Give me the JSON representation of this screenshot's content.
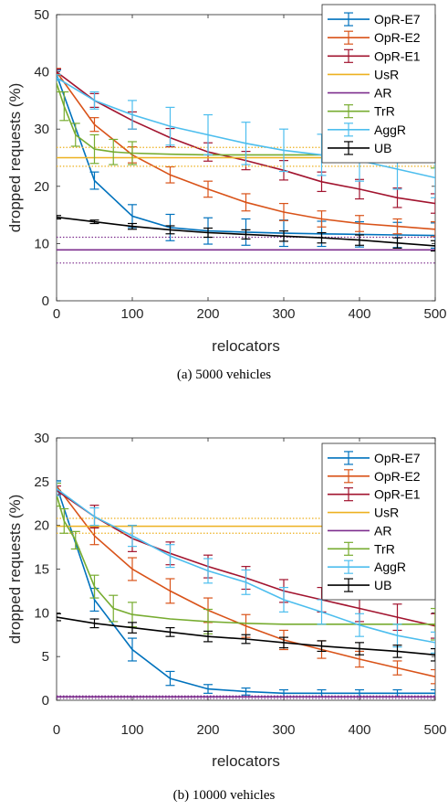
{
  "captions": [
    "(a) 5000 vehicles",
    "(b) 10000 vehicles"
  ],
  "legend_colors": {
    "OpR-E7": "#0072BD",
    "OpR-E2": "#D95319",
    "OpR-E1": "#A2142F",
    "UsR": "#EDB120",
    "AR": "#7E2F8E",
    "TrR": "#77AC30",
    "AggR": "#4DBEEE",
    "UB": "#000000"
  },
  "chart_data": [
    {
      "type": "line",
      "xlabel": "relocators",
      "ylabel": "dropped requests (%)",
      "xlim": [
        0,
        500
      ],
      "ylim": [
        0,
        50
      ],
      "xticks": [
        0,
        100,
        200,
        300,
        400,
        500
      ],
      "yticks": [
        0,
        10,
        20,
        30,
        40,
        50
      ],
      "grid": false,
      "legend_position": "top-right",
      "series": [
        {
          "name": "OpR-E7",
          "x": [
            0,
            50,
            100,
            150,
            200,
            250,
            300,
            350,
            400,
            450,
            500
          ],
          "y": [
            39.5,
            21.0,
            14.8,
            12.8,
            12.2,
            12.0,
            11.8,
            11.7,
            11.6,
            11.5,
            11.4
          ],
          "err": [
            0.8,
            1.5,
            2.0,
            2.3,
            2.3,
            2.3,
            2.3,
            2.2,
            2.2,
            2.2,
            2.2
          ]
        },
        {
          "name": "OpR-E2",
          "x": [
            0,
            50,
            100,
            150,
            200,
            250,
            300,
            350,
            400,
            450,
            500
          ],
          "y": [
            40.0,
            30.8,
            25.5,
            22.0,
            19.5,
            17.2,
            15.5,
            14.3,
            13.5,
            13.0,
            12.5
          ],
          "err": [
            0.6,
            1.2,
            1.4,
            1.4,
            1.4,
            1.5,
            1.5,
            1.4,
            1.4,
            1.3,
            1.3
          ]
        },
        {
          "name": "OpR-E1",
          "x": [
            0,
            50,
            100,
            150,
            200,
            250,
            300,
            350,
            400,
            450,
            500
          ],
          "y": [
            40.0,
            35.0,
            31.5,
            28.5,
            26.0,
            24.5,
            22.8,
            20.8,
            19.5,
            18.0,
            17.0
          ],
          "err": [
            0.5,
            1.2,
            1.5,
            1.6,
            1.6,
            1.6,
            1.7,
            1.7,
            1.7,
            1.7,
            1.7
          ]
        },
        {
          "name": "UsR",
          "x": [
            0,
            500
          ],
          "y": [
            25.0,
            25.0
          ],
          "err": null,
          "band": [
            23.5,
            26.8
          ]
        },
        {
          "name": "AR",
          "x": [
            0,
            500
          ],
          "y": [
            8.9,
            8.9
          ],
          "err": null,
          "band": [
            6.6,
            11.1
          ]
        },
        {
          "name": "TrR",
          "x": [
            0,
            10,
            25,
            50,
            75,
            100,
            150,
            200,
            250,
            300,
            350,
            400,
            450,
            500
          ],
          "y": [
            38.0,
            34.0,
            29.0,
            26.5,
            26.0,
            25.8,
            25.6,
            25.5,
            25.5,
            25.5,
            25.5,
            25.5,
            25.5,
            25.5
          ],
          "err": [
            1.5,
            2.5,
            2.0,
            2.5,
            2.2,
            2.0,
            0,
            0,
            0,
            0,
            0,
            0,
            0,
            2.3
          ]
        },
        {
          "name": "AggR",
          "x": [
            0,
            50,
            100,
            150,
            200,
            250,
            300,
            350,
            400,
            450,
            500
          ],
          "y": [
            39.0,
            35.0,
            32.5,
            30.5,
            29.0,
            27.5,
            26.3,
            25.5,
            24.5,
            23.0,
            21.5
          ],
          "err": [
            0.5,
            1.5,
            2.5,
            3.3,
            3.5,
            3.7,
            3.7,
            3.6,
            3.6,
            3.5,
            3.5
          ]
        },
        {
          "name": "UB",
          "x": [
            0,
            50,
            100,
            150,
            200,
            250,
            300,
            350,
            400,
            450,
            500
          ],
          "y": [
            14.6,
            13.8,
            13.0,
            12.4,
            11.9,
            11.6,
            11.3,
            11.0,
            10.6,
            10.1,
            9.6
          ],
          "err": [
            0.3,
            0.3,
            0.5,
            0.7,
            0.8,
            0.8,
            0.9,
            0.9,
            0.9,
            0.9,
            0.9
          ]
        }
      ]
    },
    {
      "type": "line",
      "xlabel": "relocators",
      "ylabel": "dropped requests (%)",
      "xlim": [
        0,
        500
      ],
      "ylim": [
        0,
        30
      ],
      "xticks": [
        0,
        100,
        200,
        300,
        400,
        500
      ],
      "yticks": [
        0,
        5,
        10,
        15,
        20,
        25,
        30
      ],
      "grid": false,
      "legend_position": "top-right",
      "series": [
        {
          "name": "OpR-E7",
          "x": [
            0,
            50,
            100,
            150,
            200,
            250,
            300,
            350,
            400,
            450,
            500
          ],
          "y": [
            24.5,
            11.5,
            5.8,
            2.5,
            1.3,
            1.0,
            0.8,
            0.8,
            0.8,
            0.8,
            0.8
          ],
          "err": [
            0.6,
            1.3,
            1.3,
            0.8,
            0.5,
            0.4,
            0.4,
            0.4,
            0.4,
            0.4,
            0.4
          ]
        },
        {
          "name": "OpR-E2",
          "x": [
            0,
            50,
            100,
            150,
            200,
            250,
            300,
            350,
            400,
            450,
            500
          ],
          "y": [
            24.5,
            18.8,
            15.0,
            12.5,
            10.3,
            8.5,
            6.9,
            5.8,
            4.7,
            3.7,
            2.7
          ],
          "err": [
            0.5,
            1.0,
            1.3,
            1.4,
            1.4,
            1.3,
            1.1,
            1.0,
            0.9,
            0.8,
            0.8
          ]
        },
        {
          "name": "OpR-E1",
          "x": [
            0,
            50,
            100,
            150,
            200,
            250,
            300,
            350,
            400,
            450,
            500
          ],
          "y": [
            24.0,
            21.0,
            18.5,
            16.8,
            15.3,
            14.0,
            12.5,
            11.5,
            10.5,
            9.5,
            8.5
          ],
          "err": [
            0.5,
            1.3,
            1.5,
            1.3,
            1.3,
            1.3,
            1.3,
            1.4,
            1.5,
            1.5,
            1.4
          ]
        },
        {
          "name": "UsR",
          "x": [
            0,
            500
          ],
          "y": [
            19.9,
            19.9
          ],
          "err": null,
          "band": [
            19.1,
            20.8
          ]
        },
        {
          "name": "AR",
          "x": [
            0,
            500
          ],
          "y": [
            0.4,
            0.4
          ],
          "err": null,
          "band": [
            0.2,
            0.5
          ]
        },
        {
          "name": "TrR",
          "x": [
            0,
            10,
            25,
            50,
            75,
            100,
            150,
            200,
            250,
            300,
            350,
            400,
            450,
            500
          ],
          "y": [
            23.5,
            20.5,
            18.3,
            13.0,
            10.5,
            9.8,
            9.3,
            9.0,
            8.8,
            8.7,
            8.7,
            8.7,
            8.7,
            8.7
          ],
          "err": [
            1.3,
            1.4,
            1.0,
            1.3,
            1.5,
            1.4,
            0,
            1.4,
            0,
            0,
            0,
            0,
            0,
            1.8
          ]
        },
        {
          "name": "AggR",
          "x": [
            0,
            50,
            100,
            150,
            200,
            250,
            300,
            350,
            400,
            450,
            500
          ],
          "y": [
            24.2,
            21.0,
            18.8,
            16.5,
            14.8,
            13.5,
            11.5,
            10.1,
            8.6,
            7.4,
            6.6
          ],
          "err": [
            0.8,
            1.0,
            1.2,
            1.3,
            1.4,
            1.4,
            1.4,
            1.4,
            1.3,
            1.3,
            1.2
          ]
        },
        {
          "name": "UB",
          "x": [
            0,
            50,
            100,
            150,
            200,
            250,
            300,
            350,
            400,
            450,
            500
          ],
          "y": [
            9.5,
            8.8,
            8.3,
            7.8,
            7.3,
            7.0,
            6.6,
            6.2,
            5.9,
            5.6,
            5.2
          ],
          "err": [
            0.4,
            0.5,
            0.6,
            0.5,
            0.6,
            0.5,
            0.6,
            0.6,
            0.7,
            0.7,
            0.7
          ]
        }
      ]
    }
  ]
}
